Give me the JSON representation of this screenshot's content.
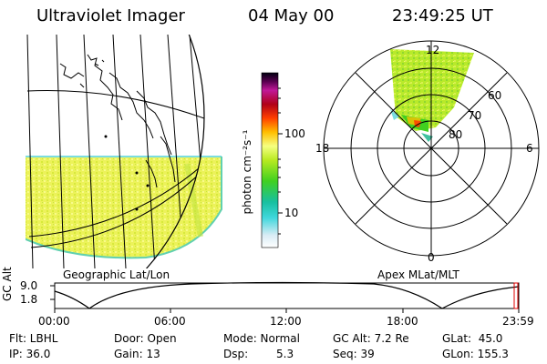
{
  "header": {
    "instrument": "Ultraviolet Imager",
    "date": "04 May 00",
    "time": "23:49:25 UT"
  },
  "left_panel": {
    "caption": "Geographic Lat/Lon"
  },
  "colorbar": {
    "label": "photon cm⁻²s⁻¹",
    "ticks": [
      "100",
      "10"
    ],
    "scale": "log"
  },
  "polar_panel": {
    "caption": "Apex MLat/MLT",
    "mlt_labels": [
      "12",
      "18",
      "6",
      "0"
    ],
    "lat_labels": [
      "60",
      "70",
      "80"
    ]
  },
  "altitude_plot": {
    "axis_label": "GC Alt",
    "y_ticks": [
      "9.0",
      "1.8"
    ],
    "x_ticks": [
      "00:00",
      "06:00",
      "12:00",
      "18:00",
      "23:59"
    ]
  },
  "info": {
    "filter": "Flt: LBHL",
    "ip": "IP: 36.0",
    "door": "Door: Open",
    "gain": "Gain: 13",
    "mode": "Mode: Normal",
    "dsp_label": "Dsp:",
    "dsp_value": "5.3",
    "gc_alt": "GC Alt: 7.2 Re",
    "seq": "Seq: 39",
    "glat": "GLat:  45.0",
    "glon": "GLon: 155.3"
  }
}
